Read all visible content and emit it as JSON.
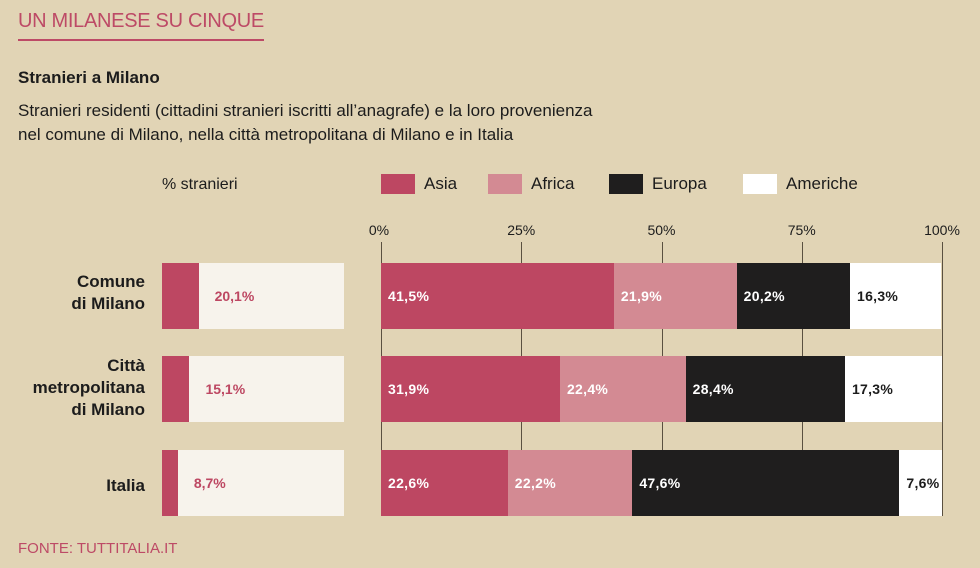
{
  "kicker": "UN MILANESE SU CINQUE",
  "title": "Stranieri a Milano",
  "subtitle": "Stranieri residenti (cittadini stranieri iscritti all’anagrafe) e la loro provenienza\n nel comune di Milano, nella città metropolitana di Milano e in Italia",
  "source": "FONTE: TUTTITALIA.IT",
  "chart_data": [
    {
      "type": "bar",
      "title": "% stranieri",
      "categories": [
        "Comune\ndi Milano",
        "Città\nmetropolitana\ndi Milano",
        "Italia"
      ],
      "values": [
        20.1,
        15.1,
        8.7
      ],
      "value_labels": [
        "20,1%",
        "15,1%",
        "8,7%"
      ],
      "xlim": [
        0,
        100
      ],
      "color": "#bd4762"
    },
    {
      "type": "bar",
      "stacked": true,
      "orientation": "horizontal",
      "categories": [
        "Comune\ndi Milano",
        "Città\nmetropolitana\ndi Milano",
        "Italia"
      ],
      "xticks": [
        "0%",
        "25%",
        "50%",
        "75%",
        "100%"
      ],
      "xlim": [
        0,
        100
      ],
      "grid": true,
      "series": [
        {
          "name": "Asia",
          "color": "#bd4762",
          "text": "#ffffff",
          "values": [
            41.5,
            31.9,
            22.6
          ],
          "labels": [
            "41,5%",
            "31,9%",
            "22,6%"
          ]
        },
        {
          "name": "Africa",
          "color": "#d38a93",
          "text": "#ffffff",
          "values": [
            21.9,
            22.4,
            22.2
          ],
          "labels": [
            "21,9%",
            "22,4%",
            "22,2%"
          ]
        },
        {
          "name": "Europa",
          "color": "#1f1e1e",
          "text": "#ffffff",
          "values": [
            20.2,
            28.4,
            47.6
          ],
          "labels": [
            "20,2%",
            "28,4%",
            "47,6%"
          ]
        },
        {
          "name": "Americhe",
          "color": "#ffffff",
          "text": "#1c1c1c",
          "values": [
            16.3,
            17.3,
            7.6
          ],
          "labels": [
            "16,3%",
            "17,3%",
            "7,6%"
          ]
        }
      ],
      "legend": "top"
    }
  ]
}
